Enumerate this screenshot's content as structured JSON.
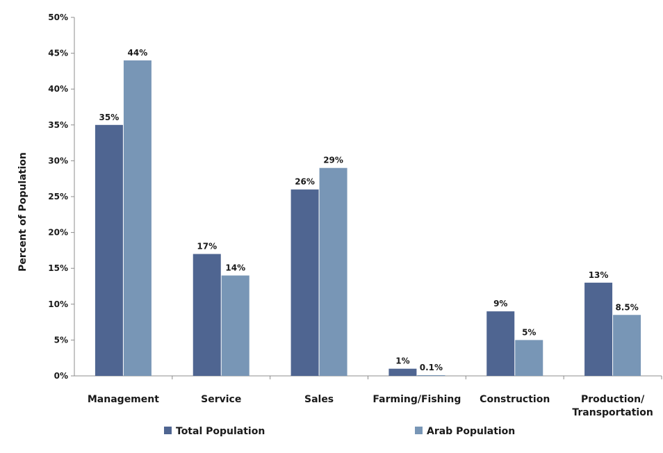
{
  "chart_data": {
    "type": "bar",
    "title": "",
    "xlabel": "",
    "ylabel": "Percent of Population",
    "ylim": [
      0,
      50
    ],
    "y_ticks": [
      0,
      5,
      10,
      15,
      20,
      25,
      30,
      35,
      40,
      45,
      50
    ],
    "y_tick_labels": [
      "0%",
      "5%",
      "10%",
      "15%",
      "20%",
      "25%",
      "30%",
      "35%",
      "40%",
      "45%",
      "50%"
    ],
    "grid": false,
    "legend_position": "bottom",
    "categories": [
      [
        "Management"
      ],
      [
        "Service"
      ],
      [
        "Sales"
      ],
      [
        "Farming/Fishing"
      ],
      [
        "Construction"
      ],
      [
        "Production/",
        "Transportation"
      ]
    ],
    "series": [
      {
        "name": "Total Population",
        "color": "#4f6591",
        "values": [
          35,
          17,
          26,
          1,
          9,
          13
        ],
        "labels": [
          "35%",
          "17%",
          "26%",
          "1%",
          "9%",
          "13%"
        ]
      },
      {
        "name": "Arab Population",
        "color": "#7896b6",
        "values": [
          44,
          14,
          29,
          0.1,
          5,
          8.5
        ],
        "labels": [
          "44%",
          "14%",
          "29%",
          "0.1%",
          "5%",
          "8.5%"
        ]
      }
    ]
  }
}
